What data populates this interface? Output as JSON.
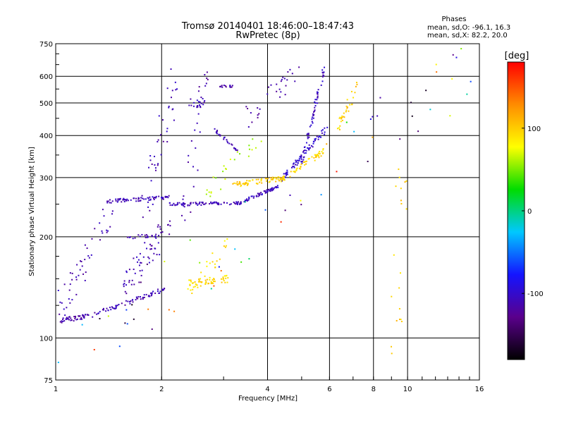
{
  "chart_data": {
    "type": "scatter",
    "title": "Tromsø 20140401 18:46:00–18:47:43",
    "subtitle": "RwPretec (8p)",
    "xlabel": "Frequency [MHz]",
    "ylabel": "Stationary phase Virtual Height [km]",
    "x_scale": "log",
    "y_scale": "log",
    "xlim": [
      1,
      16
    ],
    "ylim": [
      75,
      750
    ],
    "x_ticks": [
      1,
      2,
      4,
      6,
      8,
      10,
      16
    ],
    "x_tick_labels": [
      "1",
      "2",
      "4",
      "6",
      "8",
      "10",
      "16"
    ],
    "y_ticks": [
      75,
      100,
      200,
      300,
      400,
      500,
      600,
      750
    ],
    "y_tick_labels": [
      "75",
      "100",
      "200",
      "300",
      "400",
      "500",
      "600",
      "750"
    ],
    "grid": true,
    "stats": {
      "heading": "Phases",
      "line_o": "mean, sd,O: -96.1, 16.3",
      "line_x": "mean, sd,X:  82.2, 20.0"
    },
    "colorbar": {
      "label": "[deg]",
      "min": -180,
      "max": 180,
      "tick_values": [
        100,
        0,
        -100
      ],
      "tick_labels": [
        "100",
        "0",
        "-100"
      ],
      "stops": [
        "#000000",
        "#5a008c",
        "#1414ff",
        "#00c8ff",
        "#00dc00",
        "#ffff00",
        "#ff8c00",
        "#ff0000"
      ]
    },
    "series": [
      {
        "comment_free": true,
        "traces": [
          {
            "f": [
              1.02,
              1.3
            ],
            "h": [
              112,
              118
            ],
            "phase": -115,
            "n": 45,
            "jit": 0.035
          },
          {
            "f": [
              1.3,
              2.05
            ],
            "h": [
              118,
              140
            ],
            "phase": -110,
            "n": 70,
            "jit": 0.03
          },
          {
            "f": [
              1.6,
              2.0
            ],
            "h": [
              200,
              200
            ],
            "phase": -110,
            "n": 20,
            "jit": 0.03
          },
          {
            "f": [
              1.4,
              2.1
            ],
            "h": [
              255,
              262
            ],
            "phase": -108,
            "n": 70,
            "jit": 0.025
          },
          {
            "f": [
              2.1,
              3.4
            ],
            "h": [
              250,
              252
            ],
            "phase": -110,
            "n": 80,
            "jit": 0.02
          },
          {
            "f": [
              3.4,
              4.3
            ],
            "h": [
              255,
              282
            ],
            "phase": -105,
            "n": 60,
            "jit": 0.02
          },
          {
            "f": [
              4.3,
              5.9
            ],
            "h": [
              290,
              420
            ],
            "phase": -100,
            "n": 70,
            "jit": 0.04
          },
          {
            "f": [
              5.0,
              5.8
            ],
            "h": [
              330,
              640
            ],
            "phase": -105,
            "n": 60,
            "jit": 0.05
          },
          {
            "f": [
              2.8,
              3.3
            ],
            "h": [
              420,
              360
            ],
            "phase": -110,
            "n": 25,
            "jit": 0.02
          },
          {
            "f": [
              2.9,
              3.2
            ],
            "h": [
              560,
              560
            ],
            "phase": -115,
            "n": 15,
            "jit": 0.015
          },
          {
            "f": [
              2.4,
              2.7
            ],
            "h": [
              500,
              500
            ],
            "phase": -110,
            "n": 20,
            "jit": 0.06
          },
          {
            "f": [
              3.2,
              4.5
            ],
            "h": [
              285,
              300
            ],
            "phase": 100,
            "n": 70,
            "jit": 0.035
          },
          {
            "f": [
              4.3,
              5.8
            ],
            "h": [
              290,
              360
            ],
            "phase": 95,
            "n": 60,
            "jit": 0.04
          },
          {
            "f": [
              2.4,
              3.1
            ],
            "h": [
              145,
              150
            ],
            "phase": 95,
            "n": 50,
            "jit": 0.05
          },
          {
            "f": [
              6.3,
              7.2
            ],
            "h": [
              420,
              560
            ],
            "phase": 100,
            "n": 30,
            "jit": 0.08
          },
          {
            "f": [
              1.0,
              1.45
            ],
            "h": [
              120,
              240
            ],
            "phase": -112,
            "n": 50,
            "jit": 0.2
          },
          {
            "f": [
              1.55,
              2.1
            ],
            "h": [
              140,
              220
            ],
            "phase": -112,
            "n": 60,
            "jit": 0.2
          },
          {
            "f": [
              1.8,
              2.2
            ],
            "h": [
              250,
              560
            ],
            "phase": -112,
            "n": 40,
            "jit": 0.25
          },
          {
            "f": [
              2.3,
              2.7
            ],
            "h": [
              220,
              640
            ],
            "phase": -115,
            "n": 30,
            "jit": 0.2
          },
          {
            "f": [
              2.6,
              3.8
            ],
            "h": [
              260,
              400
            ],
            "phase": 60,
            "n": 25,
            "jit": 0.15
          },
          {
            "f": [
              2.4,
              3.1
            ],
            "h": [
              140,
              190
            ],
            "phase": 90,
            "n": 30,
            "jit": 0.12
          },
          {
            "f": [
              3.5,
              5.0
            ],
            "h": [
              450,
              640
            ],
            "phase": -115,
            "n": 30,
            "jit": 0.15
          },
          {
            "f": [
              9.2,
              9.7
            ],
            "h": [
              80,
              420
            ],
            "phase": 100,
            "n": 20,
            "jit": 0.25
          },
          {
            "f": [
              1.0,
              16.0
            ],
            "h": [
              80,
              700
            ],
            "phase": 0,
            "n": 70,
            "jit": 0.5
          }
        ]
      }
    ]
  }
}
